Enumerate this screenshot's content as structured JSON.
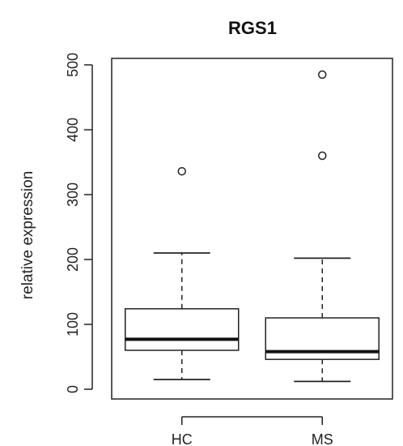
{
  "chart_data": {
    "type": "boxplot",
    "title": "RGS1",
    "xlabel": "",
    "ylabel": "relative expression",
    "ylim": [
      -15,
      510
    ],
    "yticks": [
      0,
      100,
      200,
      300,
      400,
      500
    ],
    "ytick_labels": [
      "0",
      "100",
      "200",
      "300",
      "400",
      "500"
    ],
    "categories": [
      "HC",
      "MS"
    ],
    "boxes": [
      {
        "category": "HC",
        "min": 15,
        "q1": 60,
        "median": 77,
        "q3": 124,
        "max": 210,
        "outliers": [
          336
        ]
      },
      {
        "category": "MS",
        "min": 12,
        "q1": 46,
        "median": 58,
        "q3": 110,
        "max": 202,
        "outliers": [
          360,
          485
        ]
      }
    ],
    "grid": false,
    "legend": "none"
  }
}
